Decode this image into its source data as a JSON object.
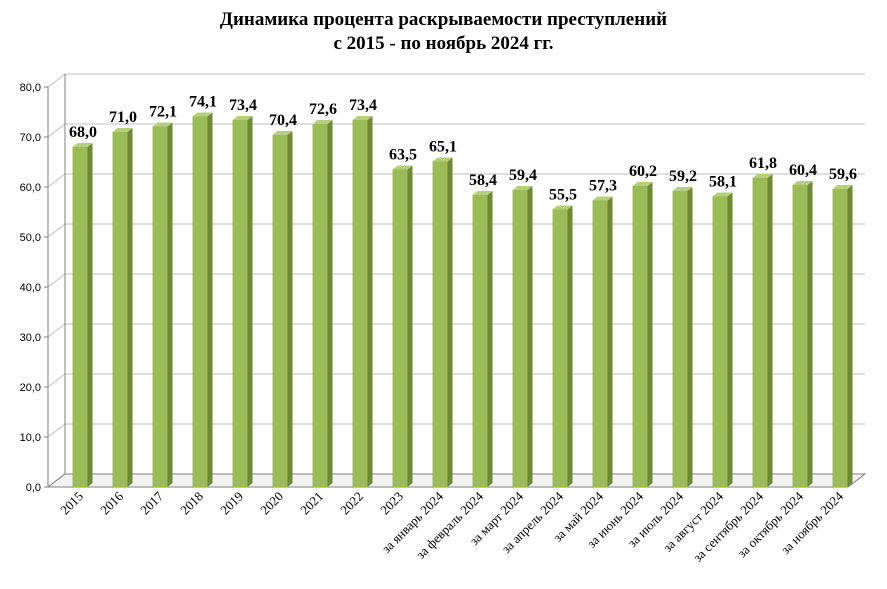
{
  "chart_data": {
    "type": "bar",
    "title_lines": [
      "Динамика процента раскрываемости преступлений",
      "с 2015 - по ноябрь 2024 гг."
    ],
    "xlabel": "",
    "ylabel": "",
    "ylim": [
      0,
      80
    ],
    "yticks": [
      "0,0",
      "10,0",
      "20,0",
      "30,0",
      "40,0",
      "50,0",
      "60,0",
      "70,0",
      "80,0"
    ],
    "grid": true,
    "legend": "none",
    "categories": [
      "2015",
      "2016",
      "2017",
      "2018",
      "2019",
      "2020",
      "2021",
      "2022",
      "2023",
      "за январь 2024",
      "за февраль 2024",
      "за март 2024",
      "за апрель 2024",
      "за май 2024",
      "за июнь 2024",
      "за июль 2024",
      "за август 2024",
      "за сентябрь 2024",
      "за октябрь 2024",
      "за ноябрь 2024"
    ],
    "values": [
      68.0,
      71.0,
      72.1,
      74.1,
      73.4,
      70.4,
      72.6,
      73.4,
      63.5,
      65.1,
      58.4,
      59.4,
      55.5,
      57.3,
      60.2,
      59.2,
      58.1,
      61.8,
      60.4,
      59.6
    ],
    "value_labels": [
      "68,0",
      "71,0",
      "72,1",
      "74,1",
      "73,4",
      "70,4",
      "72,6",
      "73,4",
      "63,5",
      "65,1",
      "58,4",
      "59,4",
      "55,5",
      "57,3",
      "60,2",
      "59,2",
      "58,1",
      "61,8",
      "60,4",
      "59,6"
    ],
    "colors": {
      "bar_front": "#9bbb59",
      "bar_side": "#6e8a37",
      "bar_top": "#b6cf7c",
      "grid": "#bfbfbf",
      "axis": "#808080"
    }
  }
}
